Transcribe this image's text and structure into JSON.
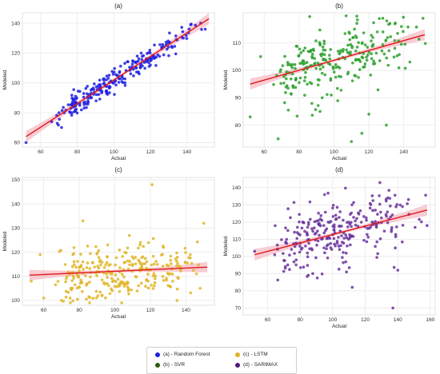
{
  "chart_data": [
    {
      "type": "scatter",
      "title": "(a)",
      "xlabel": "Actual",
      "ylabel": "Modeled",
      "xlim": [
        50,
        155
      ],
      "ylim": [
        57,
        147
      ],
      "xticks": [
        60,
        80,
        100,
        120,
        140
      ],
      "yticks": [
        60,
        80,
        100,
        120,
        140
      ],
      "grid": true,
      "color": "#1f1fe0",
      "fit": {
        "x": [
          52,
          152
        ],
        "y": [
          64,
          143
        ]
      },
      "n_points": 240,
      "noise": 4,
      "seed": 11,
      "points": [
        [
          52,
          60
        ],
        [
          66,
          74
        ],
        [
          70,
          80
        ],
        [
          96,
          93
        ],
        [
          120,
          112
        ],
        [
          138,
          130
        ],
        [
          150,
          136
        ],
        [
          142,
          139
        ],
        [
          115,
          120
        ],
        [
          85,
          86
        ]
      ]
    },
    {
      "type": "scatter",
      "title": "(b)",
      "xlabel": "Actual",
      "ylabel": "Modeled",
      "xlim": [
        48,
        158
      ],
      "ylim": [
        72,
        121
      ],
      "xticks": [
        60,
        80,
        100,
        120,
        140
      ],
      "yticks": [
        80,
        90,
        100,
        110
      ],
      "grid": true,
      "color": "#2ca02c",
      "fit": {
        "x": [
          52,
          152
        ],
        "y": [
          95,
          113
        ]
      },
      "n_points": 260,
      "noise": 6,
      "seed": 23,
      "points": [
        [
          52,
          83
        ],
        [
          68,
          75
        ],
        [
          92,
          85
        ],
        [
          110,
          74
        ],
        [
          116,
          77
        ],
        [
          130,
          80
        ],
        [
          128,
          119
        ],
        [
          135,
          117
        ],
        [
          58,
          105
        ],
        [
          120,
          84
        ]
      ]
    },
    {
      "type": "scatter",
      "title": "(c)",
      "xlabel": "Actual",
      "ylabel": "Modeled",
      "xlim": [
        48,
        156
      ],
      "ylim": [
        98,
        151
      ],
      "xticks": [
        60,
        80,
        100,
        120,
        140
      ],
      "yticks": [
        100,
        110,
        120,
        130,
        140,
        150
      ],
      "grid": true,
      "color": "#e0b526",
      "fit": {
        "x": [
          52,
          152
        ],
        "y": [
          110.5,
          113.8
        ]
      },
      "n_points": 280,
      "noise": 6,
      "seed": 37,
      "points": [
        [
          121,
          148
        ],
        [
          70,
          100
        ],
        [
          82,
          133
        ],
        [
          150,
          132
        ],
        [
          53,
          108
        ],
        [
          60,
          101
        ],
        [
          135,
          100
        ],
        [
          58,
          119
        ]
      ]
    },
    {
      "type": "scatter",
      "title": "(d)",
      "xlabel": "Actual",
      "ylabel": "Modeled",
      "xlim": [
        45,
        163
      ],
      "ylim": [
        66,
        146
      ],
      "xticks": [
        60,
        80,
        100,
        120,
        140,
        160
      ],
      "yticks": [
        70,
        80,
        90,
        100,
        110,
        120,
        130,
        140
      ],
      "grid": true,
      "color": "#6a329f",
      "fit": {
        "x": [
          52,
          158
        ],
        "y": [
          101,
          127
        ]
      },
      "n_points": 270,
      "noise": 10,
      "seed": 53,
      "points": [
        [
          137,
          70
        ],
        [
          129,
          143
        ],
        [
          95,
          136
        ],
        [
          158,
          118
        ],
        [
          52,
          103
        ],
        [
          85,
          89
        ],
        [
          112,
          82
        ],
        [
          140,
          92
        ]
      ]
    }
  ],
  "fit_color": "#e0161b",
  "band_color": "#f7b6c0",
  "legend": {
    "items": [
      {
        "label": "(a) - Random Forest",
        "color": "#1f1fe0"
      },
      {
        "label": "(c) - LSTM",
        "color": "#e0b526"
      },
      {
        "label": "(b) - SVR",
        "color": "#2e5a0e"
      },
      {
        "label": "(d) - SARIMAX",
        "color": "#4b1a82"
      }
    ]
  }
}
